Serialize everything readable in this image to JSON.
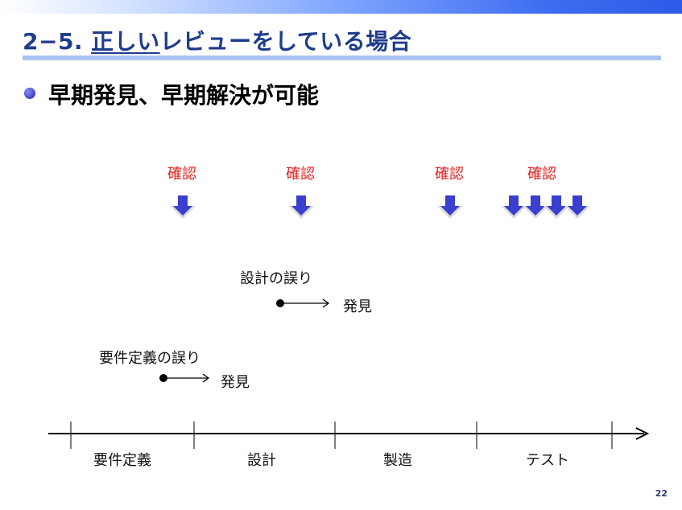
{
  "slide": {
    "title_number": "2−5.",
    "title_underlined": "正しい",
    "title_rest": "レビューをしている場合",
    "bullet": "早期発見、早期解決が可能",
    "page_number": "22"
  },
  "diagram": {
    "check_label": "確認",
    "design_error_label": "設計の誤り",
    "requirements_error_label": "要件定義の誤り",
    "found_label": "発見",
    "phases": [
      "要件定義",
      "設計",
      "製造",
      "テスト"
    ]
  },
  "colors": {
    "title": "#1f3c8c",
    "check_text": "#e02020",
    "arrow": "#3a3fd0",
    "rule": "#a9c4f2"
  }
}
